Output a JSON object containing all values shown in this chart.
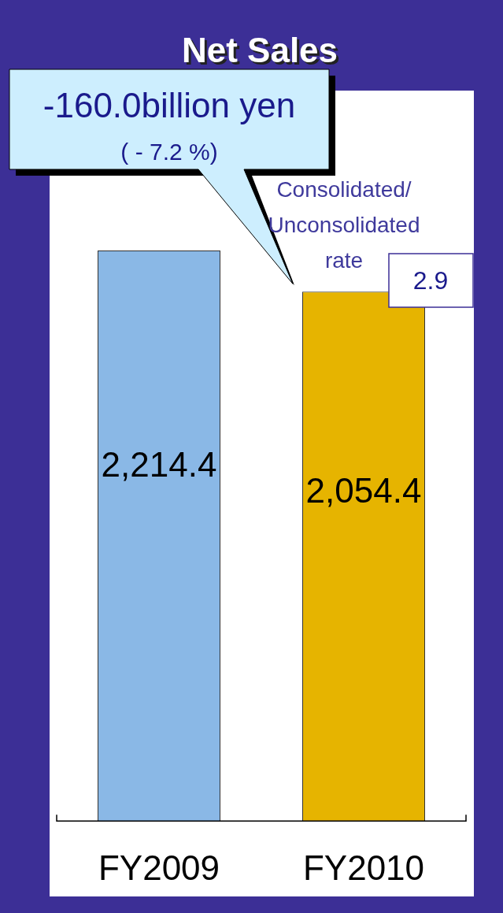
{
  "chart_data": {
    "type": "bar",
    "title": "Net Sales",
    "categories": [
      "FY2009",
      "FY2010"
    ],
    "values": [
      2214.4,
      2054.4
    ],
    "colors": [
      "#8ab8e6",
      "#e6b400"
    ],
    "value_labels": [
      "2,214.4",
      "2,054.4"
    ],
    "ylim": [
      0,
      2820
    ],
    "tick_labels": "x",
    "grid": false,
    "legend": false,
    "annotations": [
      "-160.0billion yen",
      "( - 7.2 %)",
      "Consolidated/ Unconsolidated rate",
      "2.9"
    ]
  }
}
